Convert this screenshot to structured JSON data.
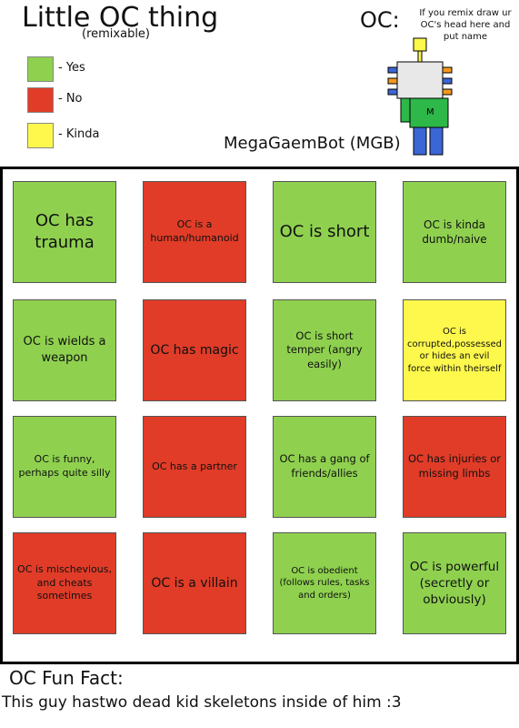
{
  "header": {
    "title": "Little OC thing",
    "subtitle": "(remixable)"
  },
  "legend": [
    {
      "color": "#8fd14f",
      "label": "- Yes"
    },
    {
      "color": "#e03c28",
      "label": "- No"
    },
    {
      "color": "#fef84c",
      "label": "- Kinda"
    }
  ],
  "oc": {
    "label": "OC:",
    "note": "If you remix draw ur OC's head here and put name",
    "name": "MegaGaemBot (MGB)"
  },
  "cells": [
    {
      "text": "OC has trauma",
      "color": "#8fd14f"
    },
    {
      "text": "OC is a human/humanoid",
      "color": "#e03c28"
    },
    {
      "text": "OC is short",
      "color": "#8fd14f"
    },
    {
      "text": "OC is kinda dumb/naive",
      "color": "#8fd14f"
    },
    {
      "text": "OC is wields a weapon",
      "color": "#8fd14f"
    },
    {
      "text": "OC has magic",
      "color": "#e03c28"
    },
    {
      "text": "OC is short temper (angry easily)",
      "color": "#8fd14f"
    },
    {
      "text": "OC is corrupted,possessed or hides an evil force within theirself",
      "color": "#fef84c"
    },
    {
      "text": "OC is funny, perhaps quite silly",
      "color": "#8fd14f"
    },
    {
      "text": "OC has a partner",
      "color": "#e03c28"
    },
    {
      "text": "OC has a gang of friends/allies",
      "color": "#8fd14f"
    },
    {
      "text": "OC has injuries or missing limbs",
      "color": "#e03c28"
    },
    {
      "text": "OC is mischevious, and cheats sometimes",
      "color": "#e03c28"
    },
    {
      "text": "OC is a villain",
      "color": "#e03c28"
    },
    {
      "text": "OC is obedient (follows rules, tasks and orders)",
      "color": "#8fd14f"
    },
    {
      "text": "OC is powerful (secretly or obviously)",
      "color": "#8fd14f"
    }
  ],
  "fun_fact": {
    "title": "OC Fun Fact:",
    "text": "This guy hastwo dead kid skeletons inside of him :3"
  }
}
